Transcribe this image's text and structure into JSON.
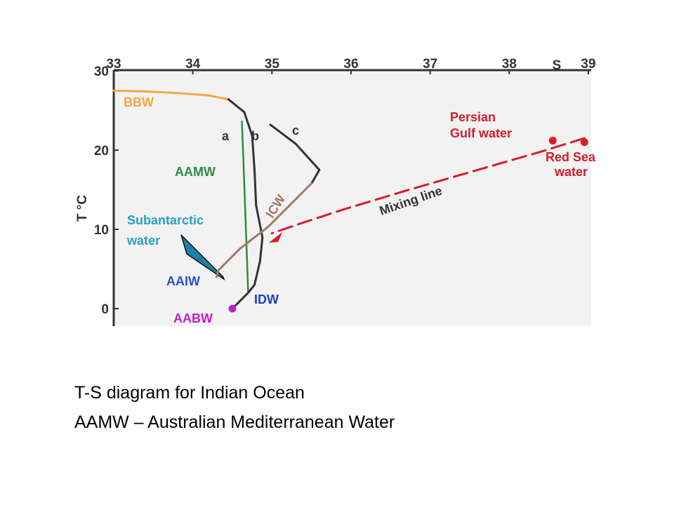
{
  "chart_data": {
    "type": "line",
    "title": "",
    "xlabel": "S",
    "ylabel": "T °C",
    "xlim": [
      33,
      39
    ],
    "ylim": [
      0,
      30
    ],
    "x_ticks": [
      "33",
      "34",
      "35",
      "36",
      "37",
      "38",
      "39"
    ],
    "y_ticks": [
      "0",
      "10",
      "20",
      "30"
    ],
    "grid": false,
    "colors": {
      "background": "#f2f2f2",
      "axis": "#333333",
      "bbw": "#f0a848",
      "aamw": "#2e8b47",
      "icw": "#a07868",
      "profile": "#333333",
      "subantarctic": "#2aa0c8",
      "wedge": "#1e7fa8",
      "mixing": "#d81c2c",
      "aabw": "#c020c8",
      "aaiw": "#2a4fd0",
      "idw": "#1a44c8"
    },
    "series": [
      {
        "name": "BBW",
        "points": [
          [
            33.0,
            27.5
          ],
          [
            33.4,
            27.4
          ],
          [
            33.8,
            27.2
          ],
          [
            34.2,
            26.9
          ],
          [
            34.45,
            26.4
          ]
        ]
      },
      {
        "name": "a",
        "points": [
          [
            34.62,
            23.6
          ],
          [
            34.64,
            18.5
          ],
          [
            34.66,
            13.0
          ],
          [
            34.68,
            7.5
          ],
          [
            34.7,
            2.0
          ]
        ]
      },
      {
        "name": "b",
        "points": [
          [
            34.45,
            26.4
          ],
          [
            34.65,
            24.8
          ],
          [
            34.75,
            21.8
          ],
          [
            34.78,
            17.5
          ],
          [
            34.8,
            13.0
          ],
          [
            34.88,
            9.0
          ],
          [
            34.85,
            6.0
          ],
          [
            34.78,
            3.0
          ],
          [
            34.7,
            2.0
          ],
          [
            34.5,
            0.0
          ]
        ]
      },
      {
        "name": "c",
        "points": [
          [
            34.98,
            23.2
          ],
          [
            35.3,
            20.8
          ],
          [
            35.6,
            17.5
          ],
          [
            35.5,
            15.8
          ]
        ]
      },
      {
        "name": "ICW",
        "points": [
          [
            35.5,
            15.8
          ],
          [
            35.2,
            12.8
          ],
          [
            34.95,
            10.3
          ],
          [
            34.6,
            7.6
          ],
          [
            34.32,
            4.8
          ],
          [
            34.3,
            4.0
          ]
        ]
      },
      {
        "name": "Mixing line",
        "points": [
          [
            38.95,
            21.5
          ],
          [
            38.4,
            19.8
          ],
          [
            37.6,
            17.5
          ],
          [
            36.7,
            14.9
          ],
          [
            35.9,
            12.5
          ],
          [
            35.35,
            10.7
          ],
          [
            35.0,
            9.5
          ]
        ]
      }
    ],
    "points": [
      {
        "name": "Persian Gulf water",
        "x": 38.55,
        "y": 21.2
      },
      {
        "name": "Red Sea water",
        "x": 38.95,
        "y": 21.0
      },
      {
        "name": "AABW",
        "x": 34.5,
        "y": 0.0
      }
    ],
    "labels": {
      "bbw": "BBW",
      "a": "a",
      "b": "b",
      "c": "c",
      "aamw": "AAMW",
      "icw": "ICW",
      "subantarctic_1": "Subantarctic",
      "subantarctic_2": "water",
      "aaiw": "AAIW",
      "idw": "IDW",
      "aabw": "AABW",
      "persian_1": "Persian",
      "persian_2": "Gulf water",
      "redsea_1": "Red Sea",
      "redsea_2": "water",
      "mixing": "Mixing line",
      "s_axis": "S",
      "t_axis": "T °C"
    }
  },
  "caption": {
    "line1": "T-S diagram for Indian Ocean",
    "line2": "AAMW – Australian Mediterranean Water"
  }
}
